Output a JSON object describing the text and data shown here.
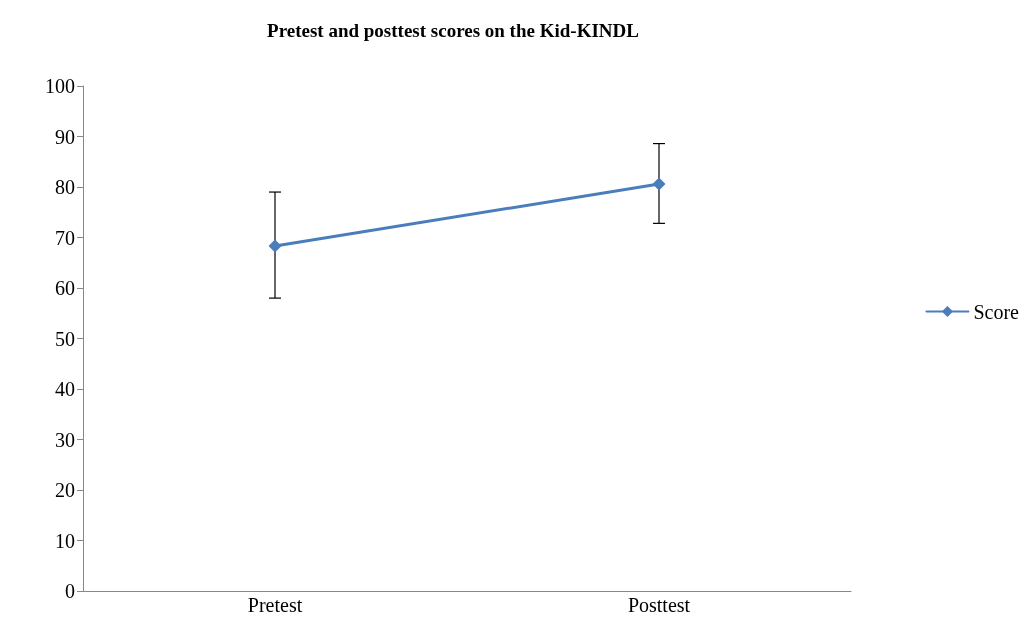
{
  "chart_data": {
    "type": "line",
    "title": "Pretest and posttest scores on the Kid-KINDL",
    "categories": [
      "Pretest",
      "Posttest"
    ],
    "series": [
      {
        "name": "Score",
        "color": "#4a7ebb",
        "values": [
          68.3,
          80.6
        ],
        "errors": [
          [
            58,
            79
          ],
          [
            72.8,
            88.6
          ]
        ]
      }
    ],
    "ylim": [
      0,
      100
    ],
    "yticks": [
      0,
      10,
      20,
      30,
      40,
      50,
      60,
      70,
      80,
      90,
      100
    ],
    "grid": false,
    "legend": "right",
    "marker": "diamond",
    "line_style": "solid"
  }
}
